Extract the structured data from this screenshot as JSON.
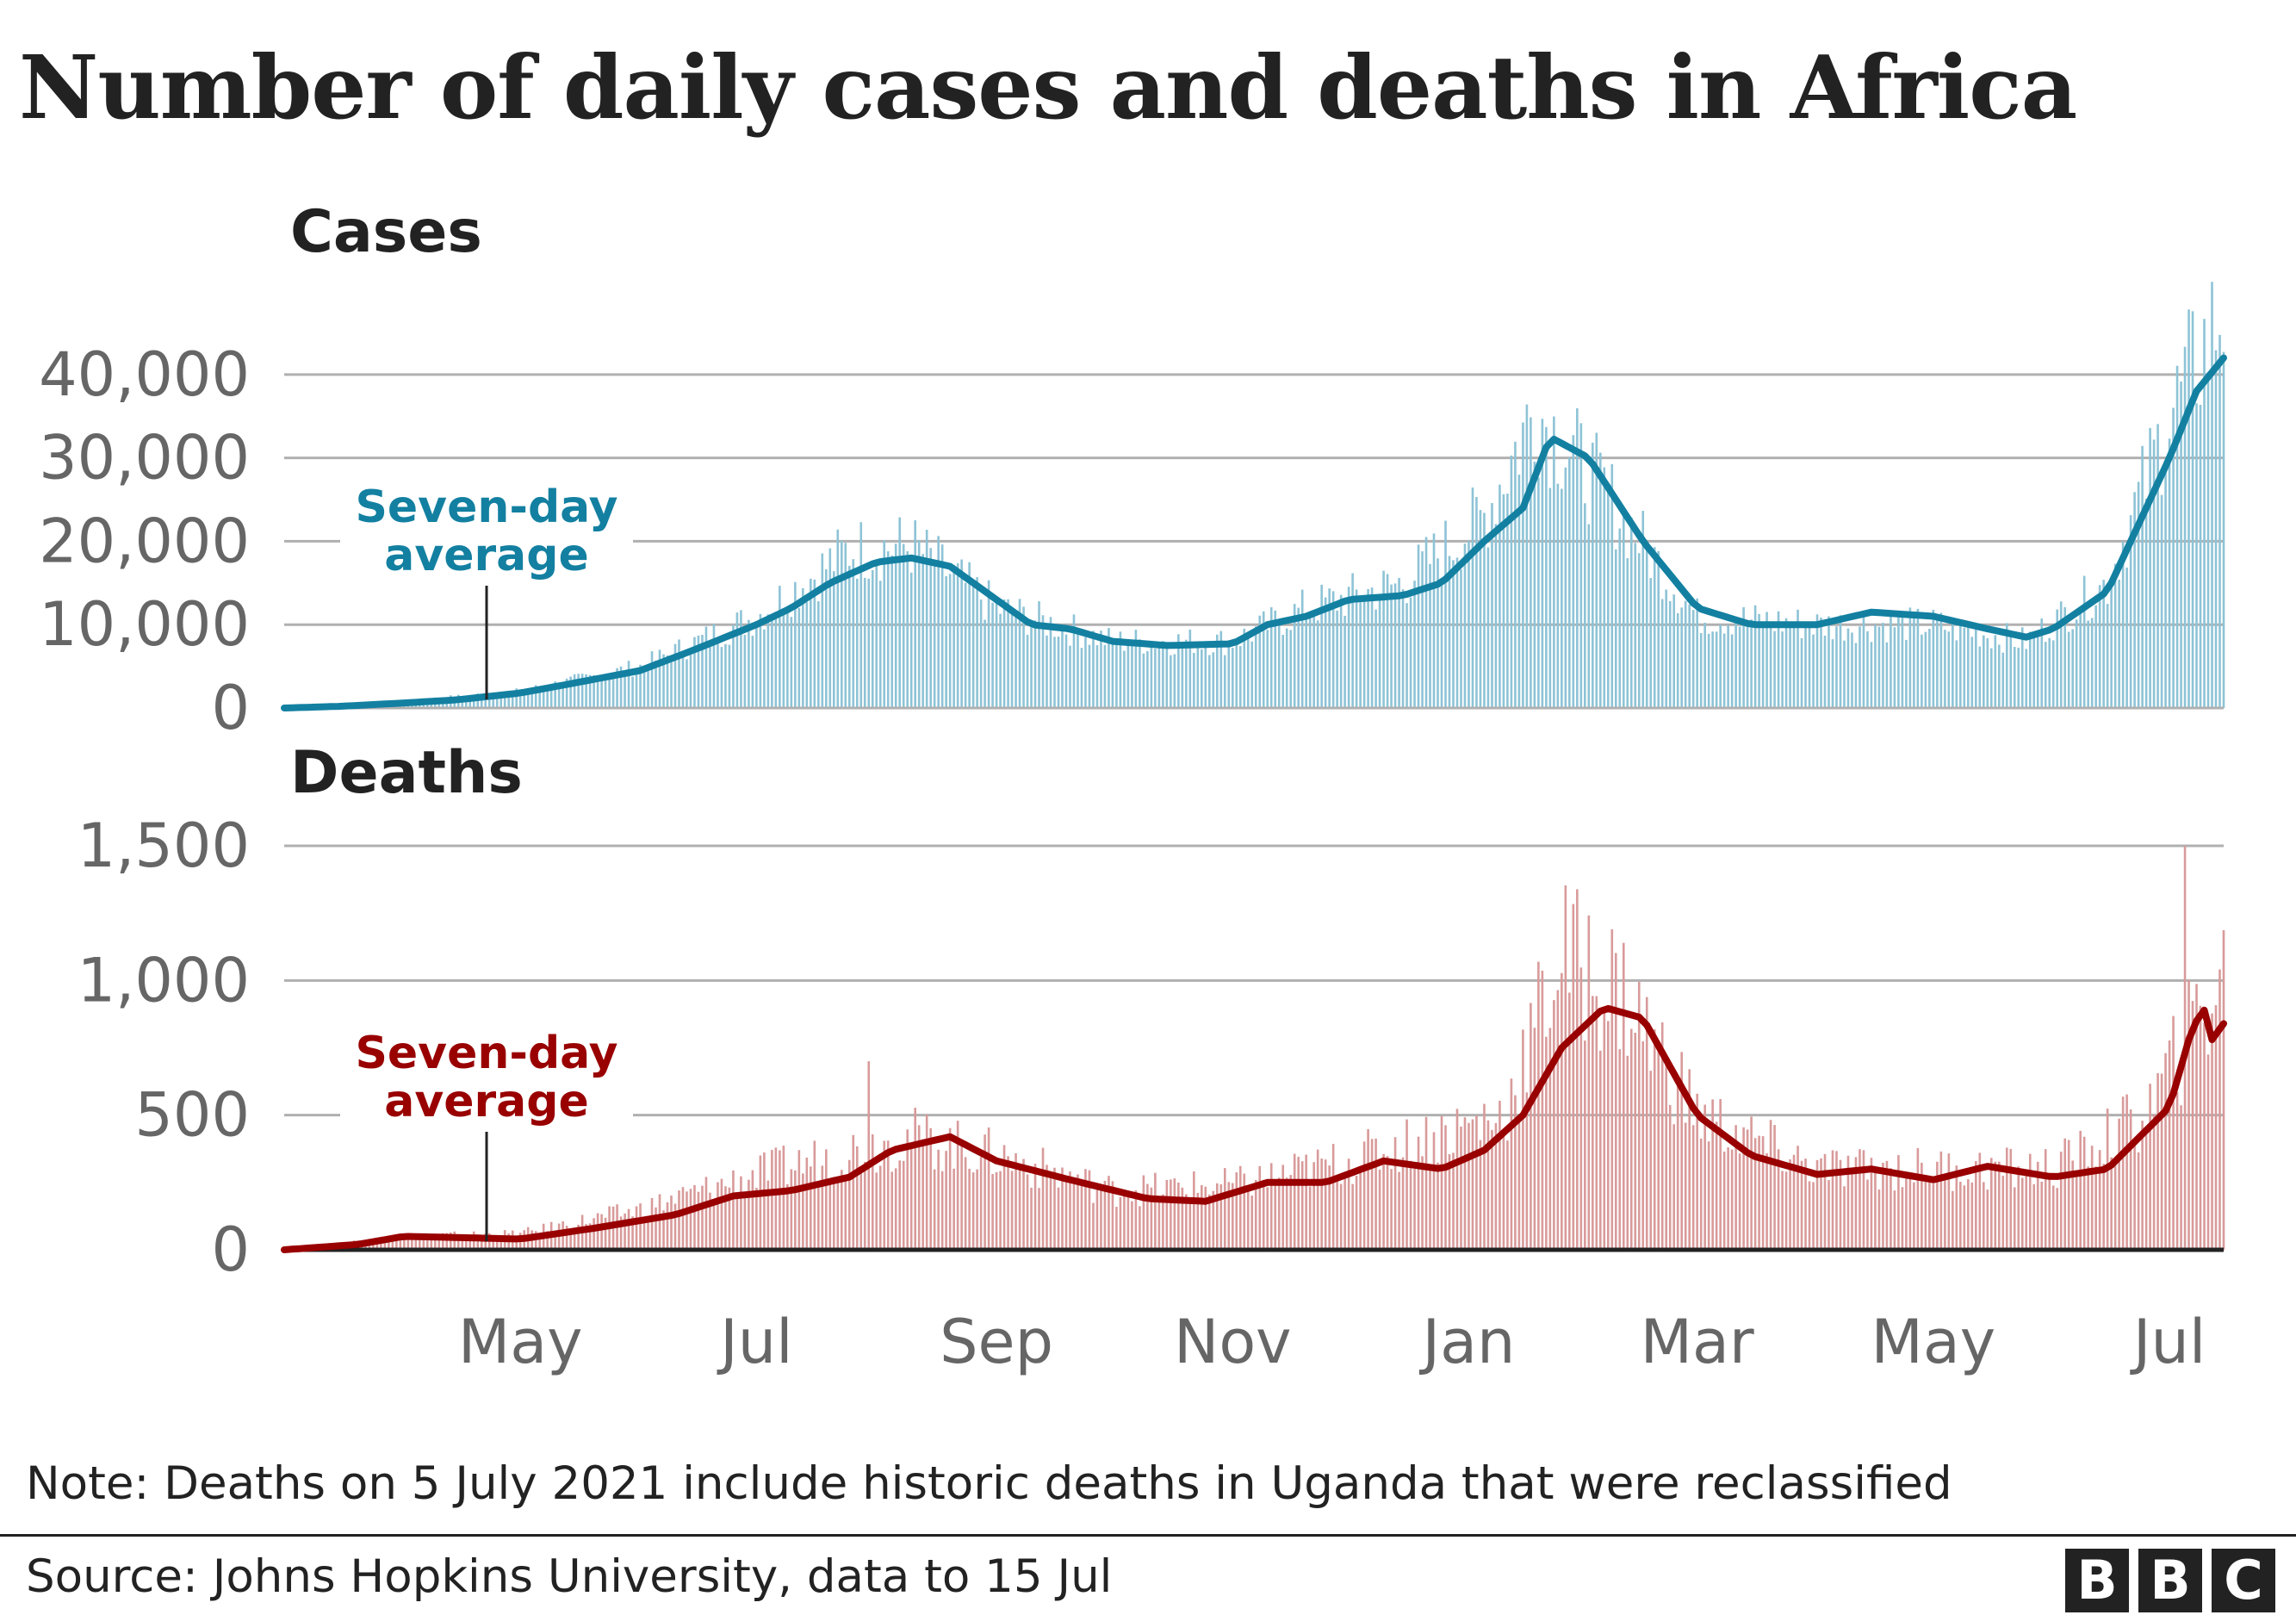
{
  "title": "Number of daily cases and deaths in Africa",
  "note": "Note: Deaths on 5 July 2021 include historic deaths in Uganda that were reclassified",
  "source": "Source: Johns Hopkins University, data to 15 Jul",
  "logo": [
    "B",
    "B",
    "C"
  ],
  "colors": {
    "cases_line": "#1380a1",
    "cases_bars": "#8dc3d6",
    "deaths_line": "#990000",
    "deaths_bars": "#d99a9a",
    "grid": "#b0b0b0",
    "axis_text": "#666666",
    "title_text": "#222222"
  },
  "chart_data": [
    {
      "type": "line",
      "title": "Cases",
      "x_axis": {
        "start": "2020-03-01",
        "end": "2021-07-15",
        "ticks": [
          {
            "label": "May",
            "date": "2020-05-01"
          },
          {
            "label": "Jul",
            "date": "2020-07-01"
          },
          {
            "label": "Sep",
            "date": "2020-09-01"
          },
          {
            "label": "Nov",
            "date": "2020-11-01"
          },
          {
            "label": "Jan",
            "date": "2021-01-01"
          },
          {
            "label": "Mar",
            "date": "2021-03-01"
          },
          {
            "label": "May",
            "date": "2021-05-01"
          },
          {
            "label": "Jul",
            "date": "2021-07-01"
          }
        ]
      },
      "y_axis": {
        "ylim": [
          0,
          45000
        ],
        "ticks": [
          {
            "value": 0,
            "label": "0"
          },
          {
            "value": 10000,
            "label": "10,000"
          },
          {
            "value": 20000,
            "label": "20,000"
          },
          {
            "value": 30000,
            "label": "30,000"
          },
          {
            "value": 40000,
            "label": "40,000"
          }
        ]
      },
      "grid": true,
      "annotation": {
        "text": [
          "Seven-day",
          "average"
        ],
        "date": "2020-05-01"
      },
      "series": [
        {
          "name": "Seven-day average",
          "kind": "line",
          "points": [
            [
              "2020-03-01",
              0
            ],
            [
              "2020-03-15",
              200
            ],
            [
              "2020-04-01",
              600
            ],
            [
              "2020-04-15",
              1000
            ],
            [
              "2020-05-01",
              1800
            ],
            [
              "2020-05-15",
              3000
            ],
            [
              "2020-06-01",
              4500
            ],
            [
              "2020-06-15",
              7000
            ],
            [
              "2020-07-01",
              10000
            ],
            [
              "2020-07-10",
              12000
            ],
            [
              "2020-07-20",
              15000
            ],
            [
              "2020-08-01",
              17500
            ],
            [
              "2020-08-10",
              18000
            ],
            [
              "2020-08-20",
              17000
            ],
            [
              "2020-09-01",
              13000
            ],
            [
              "2020-09-10",
              10000
            ],
            [
              "2020-09-20",
              9500
            ],
            [
              "2020-10-01",
              8000
            ],
            [
              "2020-10-15",
              7500
            ],
            [
              "2020-11-01",
              7700
            ],
            [
              "2020-11-10",
              10000
            ],
            [
              "2020-11-20",
              11000
            ],
            [
              "2020-12-01",
              13000
            ],
            [
              "2020-12-15",
              13500
            ],
            [
              "2020-12-25",
              15000
            ],
            [
              "2021-01-05",
              20000
            ],
            [
              "2021-01-15",
              24000
            ],
            [
              "2021-01-22",
              32500
            ],
            [
              "2021-02-01",
              30000
            ],
            [
              "2021-02-15",
              20000
            ],
            [
              "2021-03-01",
              12000
            ],
            [
              "2021-03-15",
              10000
            ],
            [
              "2021-04-01",
              10000
            ],
            [
              "2021-04-15",
              11500
            ],
            [
              "2021-05-01",
              11000
            ],
            [
              "2021-05-15",
              9500
            ],
            [
              "2021-05-25",
              8500
            ],
            [
              "2021-06-01",
              9500
            ],
            [
              "2021-06-15",
              14000
            ],
            [
              "2021-07-01",
              30000
            ],
            [
              "2021-07-08",
              38000
            ],
            [
              "2021-07-15",
              42000
            ]
          ]
        },
        {
          "name": "Daily cases",
          "kind": "bars",
          "points": [
            [
              "2020-03-01",
              0
            ],
            [
              "2020-04-01",
              800
            ],
            [
              "2020-05-01",
              2000
            ],
            [
              "2020-06-01",
              5000
            ],
            [
              "2020-07-01",
              11000
            ],
            [
              "2020-07-25",
              19000
            ],
            [
              "2020-08-10",
              19500
            ],
            [
              "2020-09-01",
              12000
            ],
            [
              "2020-10-01",
              8000
            ],
            [
              "2020-11-01",
              8000
            ],
            [
              "2020-11-20",
              12000
            ],
            [
              "2020-12-15",
              15000
            ],
            [
              "2021-01-05",
              23000
            ],
            [
              "2021-01-18",
              36000
            ],
            [
              "2021-02-05",
              26000
            ],
            [
              "2021-03-01",
              11000
            ],
            [
              "2021-04-01",
              10000
            ],
            [
              "2021-05-01",
              10000
            ],
            [
              "2021-05-25",
              8000
            ],
            [
              "2021-06-15",
              15000
            ],
            [
              "2021-07-01",
              35000
            ],
            [
              "2021-07-15",
              48000
            ]
          ]
        }
      ]
    },
    {
      "type": "line",
      "title": "Deaths",
      "x_axis": {
        "start": "2020-03-01",
        "end": "2021-07-15"
      },
      "y_axis": {
        "ylim": [
          0,
          1500
        ],
        "ticks": [
          {
            "value": 0,
            "label": "0"
          },
          {
            "value": 500,
            "label": "500"
          },
          {
            "value": 1000,
            "label": "1,000"
          },
          {
            "value": 1500,
            "label": "1,500"
          }
        ]
      },
      "grid": true,
      "annotation": {
        "text": [
          "Seven-day",
          "average"
        ],
        "date": "2020-05-01"
      },
      "series": [
        {
          "name": "Seven-day average",
          "kind": "line",
          "points": [
            [
              "2020-03-01",
              0
            ],
            [
              "2020-03-20",
              20
            ],
            [
              "2020-04-01",
              50
            ],
            [
              "2020-05-01",
              40
            ],
            [
              "2020-05-20",
              80
            ],
            [
              "2020-06-10",
              130
            ],
            [
              "2020-06-25",
              200
            ],
            [
              "2020-07-10",
              220
            ],
            [
              "2020-07-25",
              270
            ],
            [
              "2020-08-05",
              370
            ],
            [
              "2020-08-20",
              420
            ],
            [
              "2020-09-01",
              330
            ],
            [
              "2020-09-20",
              260
            ],
            [
              "2020-10-10",
              190
            ],
            [
              "2020-10-25",
              180
            ],
            [
              "2020-11-10",
              250
            ],
            [
              "2020-11-25",
              250
            ],
            [
              "2020-12-10",
              330
            ],
            [
              "2020-12-25",
              300
            ],
            [
              "2021-01-05",
              370
            ],
            [
              "2021-01-15",
              500
            ],
            [
              "2021-01-25",
              750
            ],
            [
              "2021-02-05",
              900
            ],
            [
              "2021-02-15",
              860
            ],
            [
              "2021-03-01",
              500
            ],
            [
              "2021-03-15",
              350
            ],
            [
              "2021-04-01",
              280
            ],
            [
              "2021-04-15",
              300
            ],
            [
              "2021-05-01",
              260
            ],
            [
              "2021-05-15",
              310
            ],
            [
              "2021-06-01",
              270
            ],
            [
              "2021-06-15",
              300
            ],
            [
              "2021-07-01",
              530
            ],
            [
              "2021-07-07",
              830
            ],
            [
              "2021-07-10",
              890
            ],
            [
              "2021-07-12",
              780
            ],
            [
              "2021-07-15",
              840
            ]
          ]
        },
        {
          "name": "Daily deaths",
          "kind": "bars",
          "points": [
            [
              "2020-03-01",
              0
            ],
            [
              "2020-04-01",
              50
            ],
            [
              "2020-05-01",
              60
            ],
            [
              "2020-06-01",
              150
            ],
            [
              "2020-07-01",
              280
            ],
            [
              "2020-08-10",
              420
            ],
            [
              "2020-09-01",
              350
            ],
            [
              "2020-10-01",
              220
            ],
            [
              "2020-11-01",
              240
            ],
            [
              "2020-12-01",
              330
            ],
            [
              "2021-01-10",
              500
            ],
            [
              "2021-01-25",
              1100
            ],
            [
              "2021-02-10",
              950
            ],
            [
              "2021-03-01",
              500
            ],
            [
              "2021-04-01",
              300
            ],
            [
              "2021-05-01",
              300
            ],
            [
              "2021-06-01",
              300
            ],
            [
              "2021-06-25",
              500
            ],
            [
              "2021-07-10",
              900
            ],
            [
              "2021-07-15",
              1000
            ]
          ],
          "spikes": [
            [
              "2020-07-30",
              700
            ],
            [
              "2021-07-05",
              1500
            ]
          ]
        }
      ]
    }
  ]
}
